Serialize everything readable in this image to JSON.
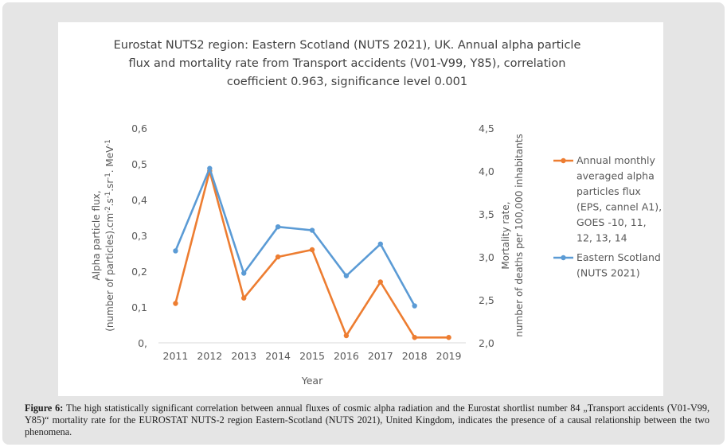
{
  "chart_data": {
    "type": "line",
    "title_lines": [
      "Eurostat NUTS2 region: Eastern Scotland (NUTS 2021), UK. Annual alpha particle",
      "flux and mortality rate from Transport accidents (V01-V99, Y85), correlation",
      "coefficient 0.963, significance level 0.001"
    ],
    "xlabel": "Year",
    "ylabel_left": {
      "line1": "Alpha particle flux,",
      "line2_parts": [
        "(number of particles).cm",
        "-2",
        ".s",
        "-1",
        ".sr",
        "-1",
        ". MeV",
        "-1"
      ]
    },
    "ylabel_right": {
      "line1": "Mortality rate,",
      "line2": "number of deaths per 100,000 inhabitants"
    },
    "categories": [
      "2011",
      "2012",
      "2013",
      "2014",
      "2015",
      "2016",
      "2017",
      "2018",
      "2019"
    ],
    "ylim_left": [
      0,
      0.6
    ],
    "yticks_left": [
      "0,",
      "0,1",
      "0,2",
      "0,3",
      "0,4",
      "0,5",
      "0,6"
    ],
    "ylim_right": [
      2.0,
      4.5
    ],
    "yticks_right": [
      "2,0",
      "2,5",
      "3,0",
      "3,5",
      "4,0",
      "4,5"
    ],
    "grid": false,
    "legend_position": "right",
    "series": [
      {
        "name": "Annual monthly averaged alpha particles flux (EPS, cannel A1), GOES -10, 11, 12, 13, 14",
        "legend_lines": [
          "Annual monthly",
          "averaged alpha",
          "particles flux",
          "(EPS, cannel A1),",
          "GOES -10, 11,",
          "12, 13, 14"
        ],
        "axis": "left",
        "color": "#ed7d31",
        "values": [
          0.11,
          0.48,
          0.125,
          0.24,
          0.26,
          0.02,
          0.17,
          0.015,
          0.015
        ]
      },
      {
        "name": "Eastern Scotland (NUTS 2021)",
        "legend_lines": [
          "Eastern Scotland",
          "(NUTS 2021)"
        ],
        "axis": "right",
        "color": "#5b9bd5",
        "values": [
          3.07,
          4.03,
          2.81,
          3.35,
          3.31,
          2.78,
          3.15,
          2.43,
          null
        ]
      }
    ]
  },
  "caption": {
    "label": "Figure 6:",
    "text": " The high statistically significant correlation between annual fluxes of cosmic alpha radiation and the Eurostat shortlist number 84 „Transport accidents (V01-V99, Y85)“ mortality rate for the EUROSTAT NUTS-2 region Eastern-Scotland (NUTS 2021), United Kingdom, indicates the presence of a causal relationship between the two phenomena."
  }
}
